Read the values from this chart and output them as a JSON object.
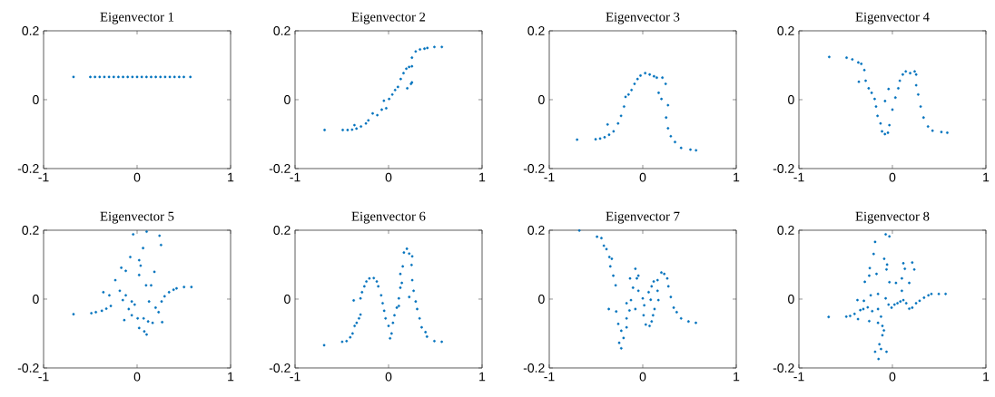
{
  "chart_data": [
    {
      "type": "scatter",
      "title": "Eigenvector 1",
      "color": "#0072bd",
      "marker": "circle",
      "xlim": [
        -1,
        1
      ],
      "ylim": [
        -0.2,
        0.2
      ],
      "xticks": [
        -1,
        0,
        1
      ],
      "yticks": [
        -0.2,
        0,
        0.2
      ],
      "x": [
        -0.68,
        -0.5,
        -0.45,
        -0.4,
        -0.35,
        -0.3,
        -0.25,
        -0.2,
        -0.15,
        -0.1,
        -0.05,
        0,
        0.05,
        0.1,
        0.15,
        0.2,
        0.25,
        0.3,
        0.35,
        0.4,
        0.45,
        0.5,
        0.57
      ],
      "values": [
        0.066,
        0.066,
        0.066,
        0.066,
        0.066,
        0.066,
        0.066,
        0.066,
        0.066,
        0.066,
        0.066,
        0.066,
        0.066,
        0.066,
        0.066,
        0.066,
        0.066,
        0.066,
        0.066,
        0.066,
        0.066,
        0.066,
        0.066
      ]
    },
    {
      "type": "scatter",
      "title": "Eigenvector 2",
      "color": "#0072bd",
      "marker": "circle",
      "xlim": [
        -1,
        1
      ],
      "ylim": [
        -0.2,
        0.2
      ],
      "xticks": [
        -1,
        0,
        1
      ],
      "yticks": [
        -0.2,
        0,
        0.2
      ],
      "x": [
        -0.684,
        -0.49,
        -0.438,
        -0.39,
        -0.343,
        -0.295,
        -0.365,
        -0.242,
        -0.216,
        -0.17,
        -0.12,
        -0.073,
        -0.05,
        -0.025,
        0.006,
        0.04,
        0.07,
        0.1,
        0.13,
        0.16,
        0.19,
        0.24,
        0.25,
        0.2,
        0.25,
        0.22,
        0.25,
        0.29,
        0.336,
        0.384,
        0.415,
        0.49,
        0.57
      ],
      "values": [
        -0.088,
        -0.088,
        -0.088,
        -0.087,
        -0.084,
        -0.078,
        -0.074,
        -0.069,
        -0.06,
        -0.04,
        -0.045,
        -0.029,
        -0.003,
        -0.025,
        0.002,
        0.015,
        0.028,
        0.037,
        0.06,
        0.077,
        0.09,
        0.046,
        0.05,
        0.033,
        0.097,
        0.095,
        0.122,
        0.14,
        0.146,
        0.148,
        0.15,
        0.153,
        0.153
      ]
    },
    {
      "type": "scatter",
      "title": "Eigenvector 3",
      "color": "#0072bd",
      "marker": "circle",
      "xlim": [
        -1,
        1
      ],
      "ylim": [
        -0.2,
        0.2
      ],
      "xticks": [
        -1,
        0,
        1
      ],
      "yticks": [
        -0.2,
        0,
        0.2
      ],
      "x": [
        -0.702,
        -0.504,
        -0.456,
        -0.408,
        -0.36,
        -0.312,
        -0.376,
        -0.264,
        -0.232,
        -0.2,
        -0.184,
        -0.152,
        -0.12,
        -0.088,
        -0.056,
        -0.024,
        0.026,
        0.074,
        0.12,
        0.15,
        0.21,
        0.245,
        0.17,
        0.2,
        0.27,
        0.25,
        0.27,
        0.3,
        0.345,
        0.41,
        0.51,
        0.57
      ],
      "values": [
        -0.116,
        -0.115,
        -0.113,
        -0.109,
        -0.102,
        -0.092,
        -0.072,
        -0.069,
        -0.047,
        -0.02,
        0.008,
        0.015,
        0.028,
        0.046,
        0.06,
        0.07,
        0.077,
        0.073,
        0.068,
        0.064,
        0.064,
        0.046,
        0.02,
        0.002,
        -0.016,
        -0.052,
        -0.083,
        -0.106,
        -0.123,
        -0.14,
        -0.145,
        -0.147
      ]
    },
    {
      "type": "scatter",
      "title": "Eigenvector 4",
      "color": "#0072bd",
      "marker": "circle",
      "xlim": [
        -1,
        1
      ],
      "ylim": [
        -0.2,
        0.2
      ],
      "xticks": [
        -1,
        0,
        1
      ],
      "yticks": [
        -0.2,
        0,
        0.2
      ],
      "x": [
        -0.676,
        -0.49,
        -0.429,
        -0.365,
        -0.333,
        -0.3,
        -0.359,
        -0.286,
        -0.254,
        -0.222,
        -0.19,
        -0.175,
        -0.159,
        -0.127,
        -0.111,
        -0.08,
        -0.048,
        -0.032,
        -0.041,
        -0.079,
        0,
        0.032,
        0.063,
        0.079,
        0.111,
        0.143,
        0.19,
        0.238,
        0.254,
        0.254,
        0.276,
        0.302,
        0.333,
        0.381,
        0.429,
        0.524,
        0.587
      ],
      "values": [
        0.124,
        0.122,
        0.117,
        0.108,
        0.104,
        0.086,
        0.052,
        0.055,
        0.033,
        0.02,
        0.002,
        -0.02,
        -0.047,
        -0.069,
        -0.092,
        -0.1,
        -0.096,
        -0.074,
        0.031,
        -0.004,
        -0.029,
        0.006,
        0.033,
        0.055,
        0.073,
        0.082,
        0.077,
        0.082,
        0.073,
        0.042,
        0.015,
        -0.02,
        -0.052,
        -0.078,
        -0.09,
        -0.094,
        -0.096
      ]
    },
    {
      "type": "scatter",
      "title": "Eigenvector 5",
      "color": "#0072bd",
      "marker": "circle",
      "xlim": [
        -1,
        1
      ],
      "ylim": [
        -0.2,
        0.2
      ],
      "xticks": [
        -1,
        0,
        1
      ],
      "yticks": [
        -0.2,
        0,
        0.2
      ],
      "x": [
        -0.68,
        -0.489,
        -0.441,
        -0.377,
        -0.329,
        -0.281,
        -0.297,
        -0.361,
        -0.233,
        -0.169,
        -0.121,
        -0.073,
        -0.042,
        0.102,
        0.24,
        0.256,
        0.064,
        0.022,
        0.038,
        0.185,
        0.022,
        0.096,
        0.15,
        -0.185,
        -0.121,
        -0.153,
        -0.057,
        -0.026,
        -0.089,
        -0.137,
        -0.057,
        0.006,
        0.07,
        0.118,
        0.166,
        0.022,
        0.102,
        0.077,
        0.128,
        0.198,
        0.23,
        0.268,
        0.262,
        0.294,
        0.342,
        0.39,
        0.422,
        0.502,
        0.581
      ],
      "values": [
        -0.044,
        -0.041,
        -0.038,
        -0.034,
        -0.028,
        -0.02,
        0.011,
        0.02,
        0.055,
        0.091,
        0.082,
        0.122,
        0.188,
        0.196,
        0.184,
        0.157,
        0.148,
        0.113,
        0.097,
        0.079,
        0.07,
        0.04,
        0.04,
        0.024,
        0.011,
        -0.003,
        -0.007,
        -0.016,
        -0.029,
        -0.061,
        -0.047,
        -0.056,
        -0.056,
        -0.065,
        -0.069,
        -0.084,
        -0.103,
        -0.094,
        -0.007,
        -0.025,
        -0.038,
        -0.067,
        -0.007,
        0.008,
        0.02,
        0.027,
        0.031,
        0.035,
        0.035
      ]
    },
    {
      "type": "scatter",
      "title": "Eigenvector 6",
      "color": "#0072bd",
      "marker": "circle",
      "xlim": [
        -1,
        1
      ],
      "ylim": [
        -0.2,
        0.2
      ],
      "xticks": [
        -1,
        0,
        1
      ],
      "yticks": [
        -0.2,
        0,
        0.2
      ],
      "x": [
        -0.689,
        -0.496,
        -0.449,
        -0.41,
        -0.385,
        -0.363,
        -0.341,
        -0.316,
        -0.3,
        -0.373,
        -0.3,
        -0.284,
        -0.259,
        -0.237,
        -0.205,
        -0.158,
        -0.126,
        -0.11,
        -0.079,
        -0.063,
        -0.047,
        -0.032,
        0,
        0.016,
        0.032,
        0.047,
        0.063,
        0.088,
        0.11,
        0.11,
        0.126,
        0.142,
        0.126,
        0.152,
        0.164,
        0.196,
        0.221,
        0.253,
        0.246,
        0.253,
        0.221,
        0.268,
        0.29,
        0.306,
        0.332,
        0.354,
        0.395,
        0.411,
        0.49,
        0.569
      ],
      "values": [
        -0.134,
        -0.124,
        -0.122,
        -0.111,
        -0.1,
        -0.078,
        -0.069,
        -0.056,
        -0.045,
        -0.004,
        0.002,
        0.02,
        0.037,
        0.051,
        0.06,
        0.061,
        0.051,
        0.037,
        0.011,
        -0.012,
        -0.034,
        -0.056,
        -0.078,
        -0.114,
        -0.1,
        -0.069,
        -0.047,
        -0.025,
        0.002,
        -0.02,
        0.033,
        0.047,
        0.073,
        0.095,
        0.135,
        0.146,
        0.132,
        0.124,
        0.099,
        0.055,
        0.006,
        0.024,
        -0.007,
        -0.029,
        -0.056,
        -0.082,
        -0.096,
        -0.109,
        -0.122,
        -0.124
      ]
    },
    {
      "type": "scatter",
      "title": "Eigenvector 7",
      "color": "#0072bd",
      "marker": "circle",
      "xlim": [
        -1,
        1
      ],
      "ylim": [
        -0.2,
        0.2
      ],
      "xticks": [
        -1,
        0,
        1
      ],
      "yticks": [
        -0.2,
        0,
        0.2
      ],
      "x": [
        -0.678,
        -0.489,
        -0.442,
        -0.416,
        -0.388,
        -0.357,
        -0.331,
        -0.347,
        -0.315,
        -0.29,
        -0.363,
        -0.284,
        -0.262,
        -0.23,
        -0.252,
        -0.23,
        -0.205,
        -0.173,
        -0.173,
        -0.142,
        -0.173,
        -0.126,
        -0.079,
        -0.104,
        -0.136,
        -0.079,
        -0.063,
        -0.047,
        -0.047,
        0,
        0.016,
        0.009,
        0.032,
        0.073,
        0.095,
        0.11,
        0.126,
        0.085,
        0.063,
        0.095,
        0.117,
        0.158,
        0.167,
        0.158,
        0.199,
        0.23,
        0.262,
        0.274,
        0.3,
        0.331,
        0.363,
        0.41,
        0.489,
        0.568
      ],
      "values": [
        0.199,
        0.181,
        0.177,
        0.155,
        0.145,
        0.122,
        0.117,
        0.095,
        0.068,
        0.04,
        -0.029,
        -0.036,
        -0.072,
        -0.092,
        -0.127,
        -0.143,
        -0.113,
        -0.082,
        -0.056,
        -0.033,
        -0.012,
        -0.003,
        -0.029,
        0.033,
        0.06,
        0.088,
        0.06,
        0.068,
        0.024,
        0.002,
        -0.018,
        -0.047,
        -0.074,
        -0.078,
        -0.065,
        -0.047,
        -0.029,
        -0.002,
        0.02,
        0.037,
        0.051,
        0.024,
        -0.003,
        0.055,
        0.077,
        0.073,
        0.06,
        0.037,
        0.006,
        -0.025,
        -0.038,
        -0.056,
        -0.065,
        -0.069
      ]
    },
    {
      "type": "scatter",
      "title": "Eigenvector 8",
      "color": "#0072bd",
      "marker": "circle",
      "xlim": [
        -1,
        1
      ],
      "ylim": [
        -0.2,
        0.2
      ],
      "xticks": [
        -1,
        0,
        1
      ],
      "yticks": [
        -0.2,
        0,
        0.2
      ],
      "x": [
        -0.682,
        -0.493,
        -0.452,
        -0.405,
        -0.343,
        -0.311,
        -0.368,
        -0.374,
        -0.305,
        -0.248,
        -0.264,
        -0.216,
        -0.232,
        -0.248,
        -0.295,
        -0.242,
        -0.201,
        -0.185,
        -0.17,
        -0.154,
        -0.154,
        -0.122,
        -0.154,
        -0.107,
        -0.091,
        -0.107,
        -0.139,
        -0.122,
        -0.148,
        -0.185,
        -0.063,
        -0.072,
        -0.032,
        -0.088,
        -0.057,
        -0.063,
        -0.032,
        -0.072,
        -0.041,
        -0.009,
        0.022,
        0.054,
        0.085,
        0.117,
        0.148,
        0.18,
        0.212,
        0.253,
        0.291,
        0.338,
        0.385,
        0.417,
        0.496,
        0.569,
        0.038,
        0.101,
        0.117,
        0.212,
        0.234,
        0.18,
        0.101,
        0.133
      ],
      "values": [
        -0.052,
        -0.051,
        -0.049,
        -0.043,
        -0.032,
        -0.029,
        -0.058,
        -0.003,
        -0.005,
        -0.064,
        -0.024,
        -0.035,
        0.011,
        0.068,
        0.05,
        0.09,
        0.131,
        0.166,
        0.073,
        0.015,
        -0.029,
        -0.051,
        -0.069,
        -0.078,
        -0.091,
        -0.105,
        -0.131,
        -0.145,
        -0.174,
        -0.153,
        -0.153,
        0.188,
        0.182,
        0.117,
        0.1,
        0.086,
        0.049,
        0.002,
        -0.016,
        -0.025,
        -0.016,
        -0.012,
        -0.007,
        -0.003,
        -0.012,
        -0.028,
        -0.025,
        -0.012,
        -0.005,
        0.004,
        0.011,
        0.015,
        0.015,
        0.015,
        0.047,
        0.06,
        0.104,
        0.106,
        0.086,
        0.047,
        0.024,
        0.088
      ]
    }
  ]
}
